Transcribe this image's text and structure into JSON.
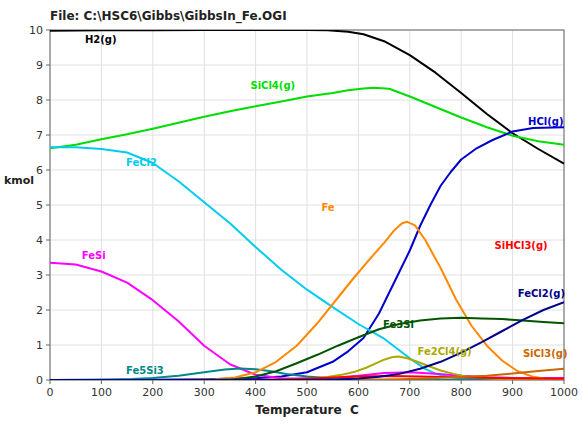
{
  "chart_data": {
    "type": "line",
    "title": "File: C:\\HSC6\\Gibbs\\GibbsIn_Fe.OGI",
    "x_label": "Temperature  C",
    "y_label": "kmol",
    "xlim": [
      0,
      1000
    ],
    "ylim": [
      0,
      10
    ],
    "xticks": [
      0,
      100,
      200,
      300,
      400,
      500,
      600,
      700,
      800,
      900,
      1000
    ],
    "yticks": [
      0,
      1,
      2,
      3,
      4,
      5,
      6,
      7,
      8,
      9,
      10
    ],
    "grid": true,
    "series": [
      {
        "name": "H2(g)",
        "color": "#000000",
        "label_x": 68,
        "label_y": 9.72,
        "x": [
          0,
          100,
          200,
          300,
          400,
          500,
          540,
          580,
          610,
          650,
          700,
          750,
          800,
          850,
          900,
          950,
          1000
        ],
        "values": [
          9.98,
          9.99,
          9.99,
          10.0,
          10.0,
          10.0,
          9.99,
          9.95,
          9.88,
          9.68,
          9.28,
          8.78,
          8.2,
          7.6,
          7.05,
          6.6,
          6.18
        ]
      },
      {
        "name": "SiCl4(g)",
        "color": "#00dd00",
        "label_x": 390,
        "label_y": 8.42,
        "x": [
          0,
          50,
          100,
          150,
          200,
          250,
          300,
          350,
          400,
          450,
          500,
          550,
          580,
          610,
          630,
          660,
          700,
          750,
          800,
          850,
          900,
          950,
          1000
        ],
        "values": [
          6.62,
          6.72,
          6.88,
          7.02,
          7.18,
          7.35,
          7.52,
          7.68,
          7.82,
          7.96,
          8.1,
          8.2,
          8.28,
          8.33,
          8.35,
          8.32,
          8.1,
          7.8,
          7.5,
          7.22,
          6.98,
          6.82,
          6.72
        ]
      },
      {
        "name": "HCl(g)",
        "color": "#0000cc",
        "label_x": 930,
        "label_y": 7.38,
        "x": [
          0,
          200,
          300,
          400,
          450,
          500,
          550,
          580,
          610,
          640,
          660,
          680,
          700,
          720,
          740,
          760,
          780,
          800,
          830,
          860,
          900,
          940,
          1000
        ],
        "values": [
          0.0,
          0.01,
          0.02,
          0.05,
          0.1,
          0.22,
          0.52,
          0.82,
          1.2,
          1.9,
          2.5,
          3.1,
          3.7,
          4.4,
          5.0,
          5.55,
          5.95,
          6.3,
          6.62,
          6.85,
          7.1,
          7.2,
          7.22
        ]
      },
      {
        "name": "FeCl2",
        "color": "#00ccee",
        "label_x": 148,
        "label_y": 6.22,
        "x": [
          0,
          50,
          100,
          150,
          200,
          250,
          300,
          350,
          400,
          450,
          500,
          550,
          600,
          650,
          700,
          730,
          750,
          780,
          800,
          850,
          900,
          1000
        ],
        "values": [
          6.65,
          6.65,
          6.6,
          6.5,
          6.2,
          5.68,
          5.08,
          4.48,
          3.8,
          3.15,
          2.58,
          2.08,
          1.6,
          1.18,
          0.62,
          0.32,
          0.18,
          0.08,
          0.04,
          0.015,
          0.008,
          0.005
        ]
      },
      {
        "name": "FeSi",
        "color": "#ff00ff",
        "label_x": 62,
        "label_y": 3.55,
        "x": [
          0,
          50,
          100,
          150,
          200,
          250,
          300,
          350,
          400,
          450,
          500,
          550,
          600,
          650,
          700,
          750,
          800,
          850,
          900,
          1000
        ],
        "values": [
          3.35,
          3.3,
          3.1,
          2.78,
          2.28,
          1.68,
          0.98,
          0.45,
          0.15,
          0.05,
          0.04,
          0.06,
          0.12,
          0.2,
          0.22,
          0.18,
          0.12,
          0.08,
          0.06,
          0.06
        ]
      },
      {
        "name": "Fe5Si3",
        "color": "#008888",
        "label_x": 148,
        "label_y": 0.28,
        "x": [
          0,
          80,
          120,
          160,
          200,
          250,
          300,
          340,
          370,
          400,
          430,
          460,
          500,
          540,
          580,
          620,
          660,
          700,
          1000
        ],
        "values": [
          0.0,
          0.005,
          0.015,
          0.03,
          0.06,
          0.12,
          0.22,
          0.3,
          0.33,
          0.31,
          0.25,
          0.17,
          0.1,
          0.055,
          0.025,
          0.01,
          0.003,
          0.0,
          0.0
        ]
      },
      {
        "name": "Fe",
        "color": "#ff8800",
        "label_x": 528,
        "label_y": 4.92,
        "x": [
          0,
          200,
          280,
          320,
          360,
          400,
          440,
          480,
          520,
          560,
          590,
          620,
          650,
          670,
          685,
          695,
          710,
          730,
          760,
          790,
          820,
          850,
          880,
          910,
          940,
          970,
          1000
        ],
        "values": [
          0.0,
          0.0,
          0.005,
          0.02,
          0.07,
          0.22,
          0.52,
          0.98,
          1.62,
          2.35,
          2.9,
          3.42,
          3.92,
          4.28,
          4.48,
          4.52,
          4.42,
          4.0,
          3.2,
          2.3,
          1.55,
          0.98,
          0.55,
          0.25,
          0.09,
          0.025,
          0.008
        ]
      },
      {
        "name": "Fe3Si",
        "color": "#005500",
        "label_x": 648,
        "label_y": 1.6,
        "x": [
          0,
          200,
          280,
          320,
          360,
          400,
          440,
          480,
          520,
          560,
          600,
          640,
          680,
          720,
          760,
          800,
          840,
          880,
          920,
          960,
          1000
        ],
        "values": [
          0.0,
          0.0,
          0.002,
          0.008,
          0.025,
          0.1,
          0.25,
          0.48,
          0.72,
          0.98,
          1.22,
          1.45,
          1.6,
          1.7,
          1.76,
          1.78,
          1.76,
          1.74,
          1.7,
          1.66,
          1.62
        ]
      },
      {
        "name": "Fe2Cl4(g)",
        "color": "#aaaa00",
        "label_x": 715,
        "label_y": 0.82,
        "x": [
          0,
          420,
          460,
          500,
          540,
          570,
          595,
          615,
          635,
          650,
          665,
          678,
          695,
          715,
          740,
          760,
          785,
          810,
          845,
          880,
          920,
          960,
          1000
        ],
        "values": [
          0.0,
          0.0,
          0.012,
          0.035,
          0.085,
          0.155,
          0.245,
          0.35,
          0.48,
          0.58,
          0.65,
          0.67,
          0.62,
          0.52,
          0.38,
          0.27,
          0.175,
          0.1,
          0.05,
          0.025,
          0.012,
          0.006,
          0.003
        ]
      },
      {
        "name": "SiHCl3(g)",
        "color": "#ff0000",
        "label_x": 865,
        "label_y": 3.85,
        "x": [
          0,
          350,
          420,
          480,
          540,
          600,
          660,
          720,
          780,
          840,
          900,
          960,
          1000
        ],
        "values": [
          0.0,
          0.0,
          0.008,
          0.03,
          0.065,
          0.1,
          0.115,
          0.1,
          0.082,
          0.065,
          0.052,
          0.042,
          0.038
        ]
      },
      {
        "name": "SiCl3(g)",
        "color": "#cc6600",
        "label_x": 920,
        "label_y": 0.75,
        "x": [
          0,
          550,
          620,
          680,
          740,
          800,
          850,
          900,
          950,
          1000
        ],
        "values": [
          0.0,
          0.0,
          0.008,
          0.022,
          0.048,
          0.085,
          0.125,
          0.185,
          0.255,
          0.32
        ]
      },
      {
        "name": "FeCl2(g)",
        "color": "#000088",
        "label_x": 910,
        "label_y": 2.48,
        "x": [
          0,
          480,
          520,
          560,
          600,
          640,
          680,
          720,
          760,
          800,
          840,
          880,
          920,
          960,
          1000
        ],
        "values": [
          0.0,
          0.0,
          0.005,
          0.015,
          0.042,
          0.09,
          0.175,
          0.32,
          0.52,
          0.78,
          1.08,
          1.4,
          1.72,
          2.0,
          2.22
        ]
      }
    ]
  }
}
